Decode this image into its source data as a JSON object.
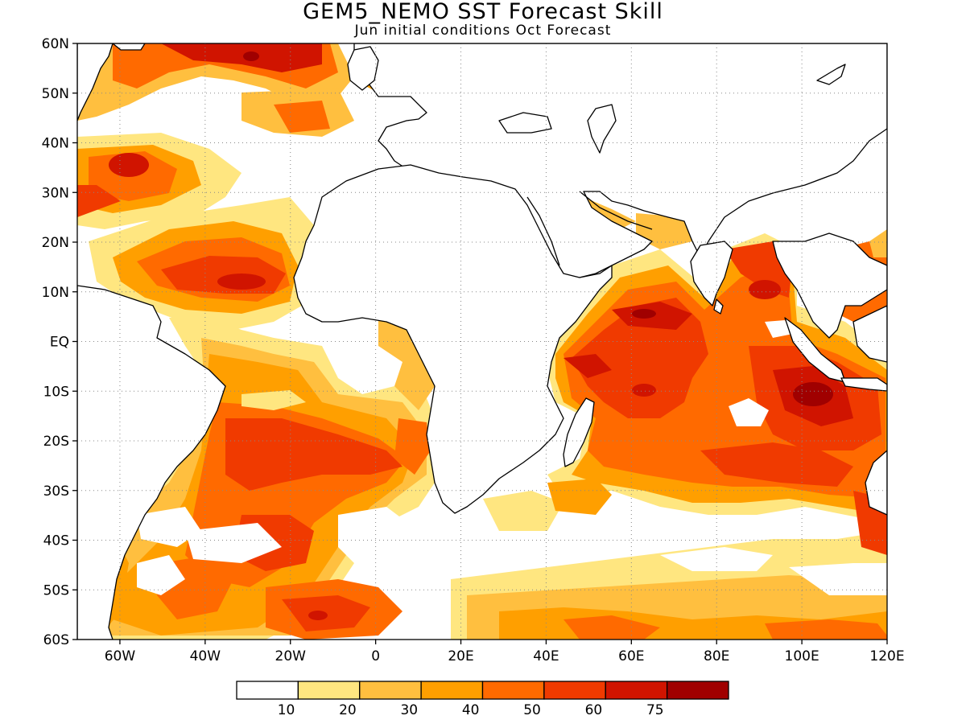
{
  "title": "GEM5_NEMO SST Forecast Skill",
  "subtitle": "Jun initial conditions  Oct Forecast",
  "map": {
    "type": "filled-contour-map",
    "lon_range": [
      -70,
      120
    ],
    "lat_range": [
      -60,
      60
    ],
    "grid": true,
    "lon_ticks": [
      {
        "value": -60,
        "label": "60W"
      },
      {
        "value": -40,
        "label": "40W"
      },
      {
        "value": -20,
        "label": "20W"
      },
      {
        "value": 0,
        "label": "0"
      },
      {
        "value": 20,
        "label": "20E"
      },
      {
        "value": 40,
        "label": "40E"
      },
      {
        "value": 60,
        "label": "60E"
      },
      {
        "value": 80,
        "label": "80E"
      },
      {
        "value": 100,
        "label": "100E"
      },
      {
        "value": 120,
        "label": "120E"
      }
    ],
    "lat_ticks": [
      {
        "value": 60,
        "label": "60N"
      },
      {
        "value": 50,
        "label": "50N"
      },
      {
        "value": 40,
        "label": "40N"
      },
      {
        "value": 30,
        "label": "30N"
      },
      {
        "value": 20,
        "label": "20N"
      },
      {
        "value": 10,
        "label": "10N"
      },
      {
        "value": 0,
        "label": "EQ"
      },
      {
        "value": -10,
        "label": "10S"
      },
      {
        "value": -20,
        "label": "20S"
      },
      {
        "value": -30,
        "label": "30S"
      },
      {
        "value": -40,
        "label": "40S"
      },
      {
        "value": -50,
        "label": "50S"
      },
      {
        "value": -60,
        "label": "60S"
      }
    ],
    "colorbar": {
      "colors": [
        "#ffffff",
        "#ffe680",
        "#ffbf3f",
        "#ff9f00",
        "#ff6a00",
        "#f03a00",
        "#d01400",
        "#a00000"
      ],
      "labels": [
        "10",
        "20",
        "30",
        "40",
        "50",
        "60",
        "75"
      ]
    }
  }
}
